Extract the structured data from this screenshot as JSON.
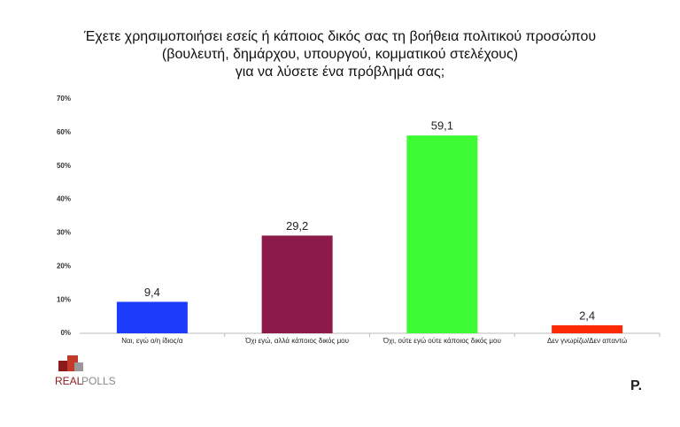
{
  "chart_data": {
    "type": "bar",
    "title": [
      "Έχετε χρησιμοποιήσει εσείς ή κάποιος δικός σας τη βοήθεια πολιτικού προσώπου",
      "(βουλευτή, δημάρχου, υπουργού, κομματικού στελέχους)",
      "για να λύσετε ένα πρόβλημά σας;"
    ],
    "categories": [
      "Ναι, εγώ ο/η ίδιος/α",
      "Όχι εγώ, αλλά κάποιος δικός μου",
      "Όχι, ούτε εγώ ούτε κάποιος δικός μου",
      "Δεν γνωρίζω/Δεν απαντώ"
    ],
    "values": [
      9.4,
      29.2,
      59.1,
      2.4
    ],
    "value_labels": [
      "9,4",
      "29,2",
      "59,1",
      "2,4"
    ],
    "colors": [
      "#1b3dfa",
      "#8c1a4b",
      "#3dfb34",
      "#fb2a05"
    ],
    "ylim": [
      0,
      70
    ],
    "yticks": [
      {
        "value": 0,
        "label": "0%"
      },
      {
        "value": 10,
        "label": "10%"
      },
      {
        "value": 20,
        "label": "20%"
      },
      {
        "value": 30,
        "label": "30%"
      },
      {
        "value": 40,
        "label": "40%"
      },
      {
        "value": 50,
        "label": "50%"
      },
      {
        "value": 60,
        "label": "60%"
      },
      {
        "value": 70,
        "label": "70%"
      }
    ],
    "grid": false
  },
  "logos": {
    "left_a": "REAL",
    "left_b": "POLLS",
    "right": "P."
  }
}
